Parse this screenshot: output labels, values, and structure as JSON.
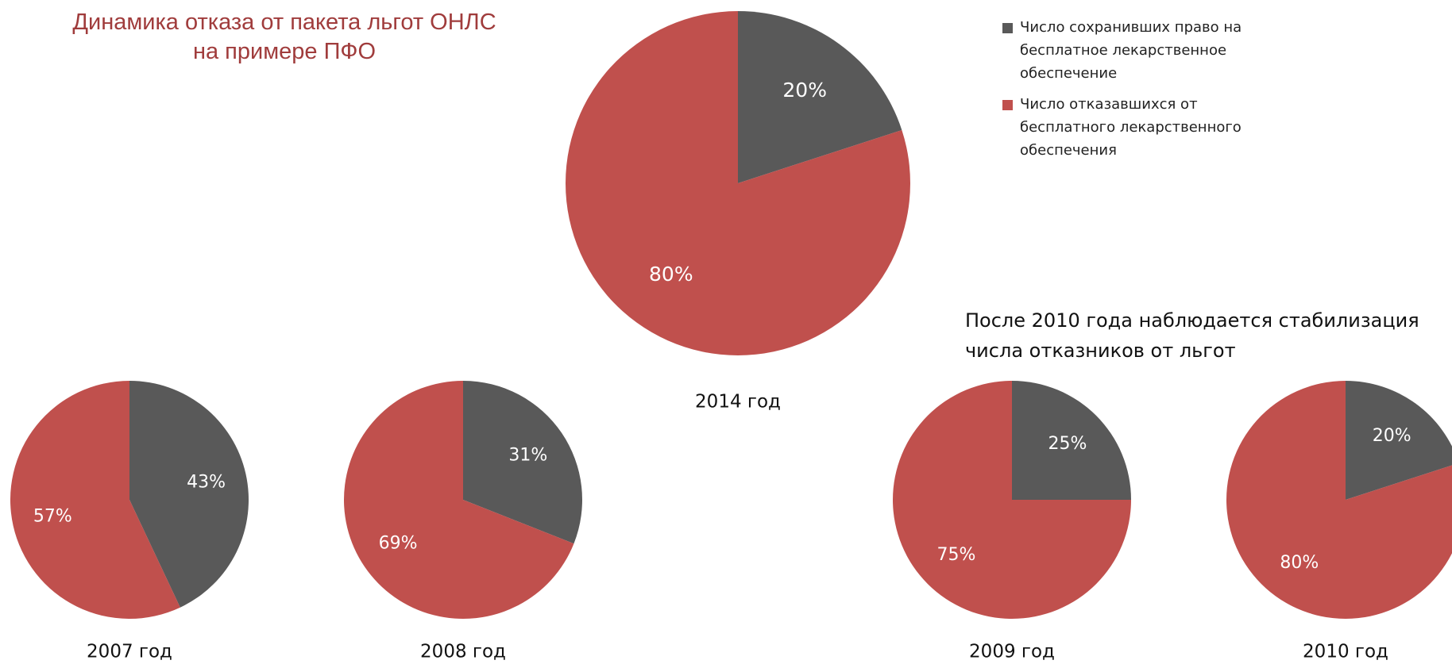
{
  "title": "Динамика отказа от пакета льгот ОНЛС на примере ПФО",
  "annotation": "После 2010 года наблюдается стабилизация числа отказников от льгот",
  "legend": {
    "labels": [
      "Число сохранивших право на бесплатное лекарственное обеспечение",
      "Число отказавшихся от бесплатного лекарственного обеспечения"
    ],
    "colors": [
      "#595959",
      "#c0504d"
    ]
  },
  "chart_data": [
    {
      "type": "pie",
      "title": "2014 год",
      "values": [
        20,
        80
      ],
      "value_labels": [
        "20%",
        "80%"
      ]
    },
    {
      "type": "pie",
      "title": "2007 год",
      "values": [
        43,
        57
      ],
      "value_labels": [
        "43%",
        "57%"
      ]
    },
    {
      "type": "pie",
      "title": "2008 год",
      "values": [
        31,
        69
      ],
      "value_labels": [
        "31%",
        "69%"
      ]
    },
    {
      "type": "pie",
      "title": "2009 год",
      "values": [
        25,
        75
      ],
      "value_labels": [
        "25%",
        "75%"
      ]
    },
    {
      "type": "pie",
      "title": "2010 год",
      "values": [
        20,
        80
      ],
      "value_labels": [
        "20%",
        "80%"
      ]
    }
  ]
}
